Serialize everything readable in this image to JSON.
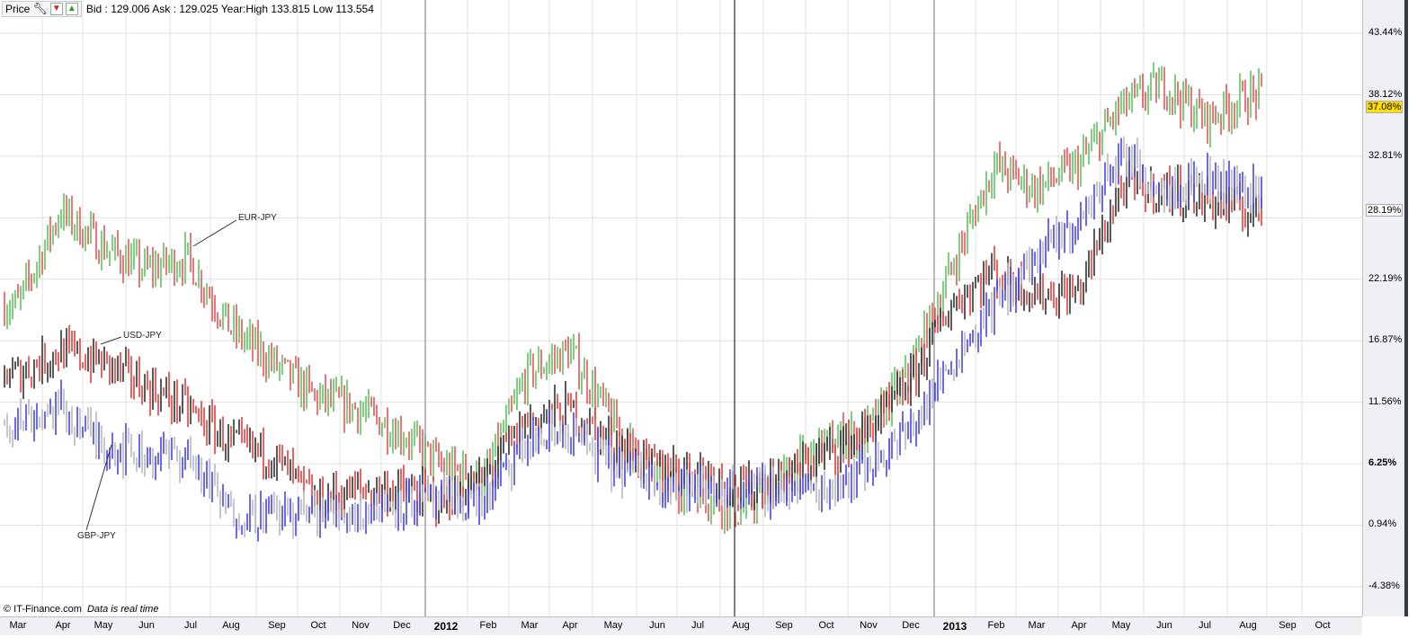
{
  "toolbar": {
    "title": "Price",
    "icons": [
      "wrench-icon",
      "zoom-out-red-icon",
      "zoom-in-green-icon"
    ],
    "quote": "Bid : 129.006 Ask : 129.025 Year:High 133.815 Low 113.554"
  },
  "credit": {
    "source": "© IT-Finance.com",
    "note": "Data is real time"
  },
  "chart_data": {
    "type": "bar",
    "subtype": "ohlc",
    "x": [
      "Mar",
      "Apr",
      "May",
      "Jun",
      "Jul",
      "Aug",
      "Sep",
      "Oct",
      "Nov",
      "Dec",
      "2012",
      "Feb",
      "Mar",
      "Apr",
      "May",
      "Jun",
      "Jul",
      "Aug",
      "Sep",
      "Oct",
      "Nov",
      "Dec",
      "2013",
      "Feb",
      "Mar",
      "Apr",
      "May",
      "Jun",
      "Jul",
      "Aug"
    ],
    "x_ticks": [
      "Mar",
      "Apr",
      "May",
      "Jun",
      "Jul",
      "Aug",
      "Sep",
      "Oct",
      "Nov",
      "Dec",
      "2012",
      "Feb",
      "Mar",
      "Apr",
      "May",
      "Jun",
      "Jul",
      "Aug",
      "Sep",
      "Oct",
      "Nov",
      "Dec",
      "2013",
      "Feb",
      "Mar",
      "Apr",
      "May",
      "Jun",
      "Jul",
      "Aug",
      "Sep",
      "Oct"
    ],
    "y_ticks": [
      "43.44%",
      "38.12%",
      "32.81%",
      "22.19%",
      "16.87%",
      "11.56%",
      "6.25%",
      "0.94%",
      "-4.38%"
    ],
    "ylim": [
      -8,
      47
    ],
    "grid": true,
    "series": [
      {
        "name": "EUR-JPY",
        "up_color": "#3cb43c",
        "down_color": "#e03030",
        "values": [
          20,
          28,
          25,
          23,
          24,
          18,
          15,
          12,
          11,
          9,
          6,
          5,
          14,
          16,
          10,
          5,
          4,
          2,
          5,
          8,
          9,
          14,
          23,
          32,
          30,
          32,
          37,
          39,
          36,
          38
        ]
      },
      {
        "name": "USD-JPY",
        "up_color": "#000000",
        "down_color": "#e01010",
        "values": [
          14,
          16,
          15,
          13,
          11,
          8,
          7,
          3,
          4,
          4,
          3,
          5,
          10,
          11,
          8,
          6,
          6,
          4,
          5,
          7,
          9,
          13,
          20,
          23,
          21,
          21,
          30,
          30,
          29,
          28
        ]
      },
      {
        "name": "GBP-JPY",
        "up_color": "#1a1aee",
        "down_color": "#a8a8b8",
        "values": [
          10,
          11,
          8,
          7,
          7,
          2,
          2,
          2,
          2,
          3,
          3,
          3,
          8,
          9,
          6,
          5,
          4,
          4,
          4,
          4,
          6,
          9,
          15,
          20,
          24,
          27,
          33,
          30,
          31,
          30
        ]
      }
    ],
    "last_values": [
      {
        "label": "37.08%",
        "color": "#ffe000"
      },
      {
        "label": "28.19%",
        "color": "#ffffff"
      }
    ]
  }
}
